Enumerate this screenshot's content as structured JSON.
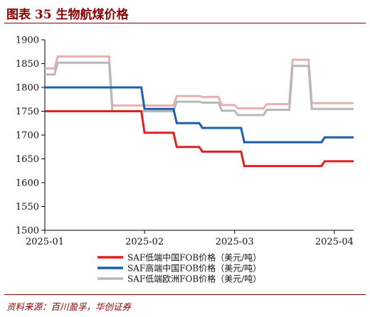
{
  "figure": {
    "title": "图表 35   生物航煤价格",
    "source": "资料来源：百川盈孚，华创证券"
  },
  "chart_data": {
    "type": "line",
    "title": "",
    "xlabel": "",
    "ylabel": "",
    "x": [
      "2025-01-02",
      "2025-01-08",
      "2025-01-15",
      "2025-01-22",
      "2025-01-29",
      "2025-02-05",
      "2025-02-12",
      "2025-02-19",
      "2025-02-26",
      "2025-03-05",
      "2025-03-12",
      "2025-03-19",
      "2025-03-26",
      "2025-04-02"
    ],
    "x_ticks": [
      "2025-01",
      "2025-02",
      "2025-03",
      "2025-04"
    ],
    "ylim": [
      1500,
      1900
    ],
    "y_ticks": [
      1500,
      1550,
      1600,
      1650,
      1700,
      1750,
      1800,
      1850,
      1900
    ],
    "grid": false,
    "legend_position": "bottom-center",
    "series": [
      {
        "name": "SAF低端中国FOB价格（美元/吨）",
        "color": "#e02020",
        "width": 3,
        "x": [
          "2025-01-01",
          "2025-01-31",
          "2025-02-01",
          "2025-02-10",
          "2025-02-11",
          "2025-02-18",
          "2025-02-19",
          "2025-03-03",
          "2025-03-04",
          "2025-03-28",
          "2025-03-29",
          "2025-04-07"
        ],
        "y": [
          1750,
          1750,
          1705,
          1705,
          1675,
          1675,
          1665,
          1665,
          1635,
          1635,
          1645,
          1645
        ]
      },
      {
        "name": "SAF高端中国FOB价格（美元/吨）",
        "color": "#1a5fa8",
        "width": 3,
        "x": [
          "2025-01-01",
          "2025-01-31",
          "2025-02-01",
          "2025-02-10",
          "2025-02-11",
          "2025-02-18",
          "2025-02-19",
          "2025-03-03",
          "2025-03-04",
          "2025-03-28",
          "2025-03-29",
          "2025-04-07"
        ],
        "y": [
          1800,
          1800,
          1755,
          1755,
          1725,
          1725,
          1715,
          1715,
          1685,
          1685,
          1695,
          1695
        ]
      },
      {
        "name": "SAF低端欧洲FOB价格（美元/吨）",
        "color": "#b8b8b8",
        "width": 3,
        "x": [
          "2025-01-01",
          "2025-01-04",
          "2025-01-05",
          "2025-01-21",
          "2025-01-22",
          "2025-02-10",
          "2025-02-11",
          "2025-02-18",
          "2025-02-19",
          "2025-02-24",
          "2025-02-25",
          "2025-03-01",
          "2025-03-02",
          "2025-03-10",
          "2025-03-11",
          "2025-03-18",
          "2025-03-19",
          "2025-03-24",
          "2025-03-25",
          "2025-04-07"
        ],
        "y": [
          1827,
          1827,
          1852,
          1852,
          1750,
          1750,
          1770,
          1770,
          1768,
          1768,
          1751,
          1751,
          1742,
          1742,
          1753,
          1753,
          1845,
          1845,
          1755,
          1755
        ]
      },
      {
        "name": "",
        "color": "#e8b0b0",
        "width": 3,
        "x": [
          "2025-01-01",
          "2025-01-04",
          "2025-01-05",
          "2025-01-21",
          "2025-01-22",
          "2025-02-10",
          "2025-02-11",
          "2025-02-18",
          "2025-02-19",
          "2025-02-24",
          "2025-02-25",
          "2025-03-01",
          "2025-03-02",
          "2025-03-10",
          "2025-03-11",
          "2025-03-18",
          "2025-03-19",
          "2025-03-24",
          "2025-03-25",
          "2025-04-07"
        ],
        "y": [
          1840,
          1840,
          1865,
          1865,
          1762,
          1762,
          1782,
          1782,
          1780,
          1780,
          1763,
          1763,
          1756,
          1756,
          1765,
          1765,
          1858,
          1858,
          1767,
          1767
        ]
      }
    ]
  }
}
